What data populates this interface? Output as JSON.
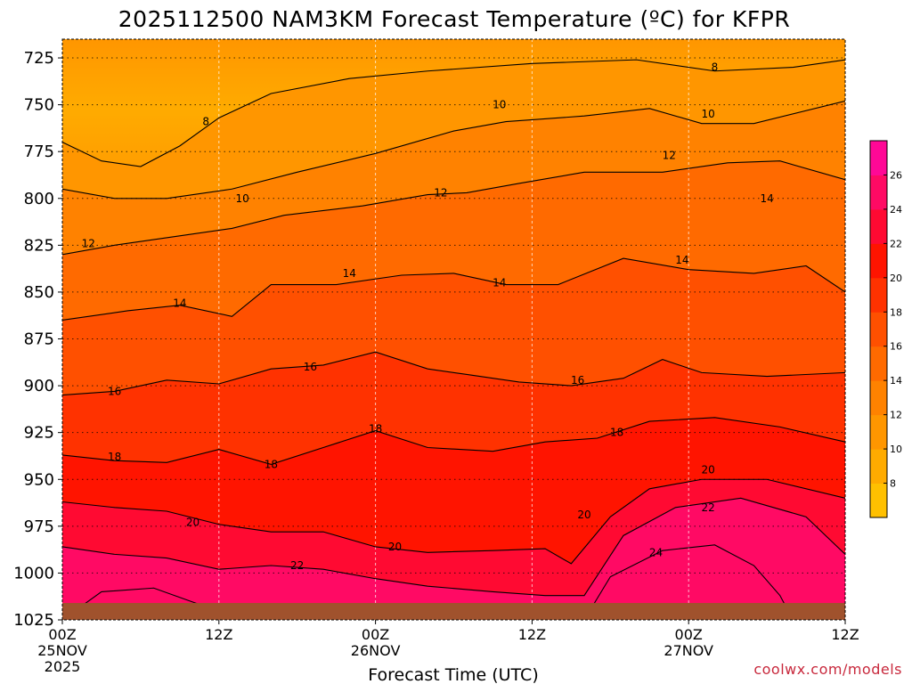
{
  "chart_data": {
    "type": "heatmap",
    "title": "2025112500 NAM3KM Forecast Temperature (ºC) for KFPR",
    "xlabel": "Forecast Time (UTC)",
    "ylabel": "",
    "credit": "coolwx.com/models",
    "y_axis": {
      "scale": "pressure (hPa), inverted",
      "ylim": [
        1025,
        715
      ],
      "ticks": [
        "725",
        "750",
        "775",
        "800",
        "825",
        "850",
        "875",
        "900",
        "925",
        "950",
        "975",
        "1000",
        "1025"
      ]
    },
    "x_axis": {
      "range_hours": [
        0,
        60
      ],
      "ticks": [
        {
          "hour": 0,
          "label": "00Z",
          "date": "25NOV",
          "year": "2025"
        },
        {
          "hour": 12,
          "label": "12Z",
          "date": "",
          "year": ""
        },
        {
          "hour": 24,
          "label": "00Z",
          "date": "26NOV",
          "year": ""
        },
        {
          "hour": 36,
          "label": "12Z",
          "date": "",
          "year": ""
        },
        {
          "hour": 48,
          "label": "00Z",
          "date": "27NOV",
          "year": ""
        },
        {
          "hour": 60,
          "label": "12Z",
          "date": "",
          "year": ""
        }
      ]
    },
    "colorbar": {
      "levels": [
        6,
        8,
        10,
        12,
        14,
        16,
        18,
        20,
        22,
        24,
        26,
        28
      ],
      "labels": [
        "8",
        "10",
        "12",
        "14",
        "16",
        "18",
        "20",
        "22",
        "24",
        "26"
      ],
      "colors": [
        "#ffc000",
        "#ffab00",
        "#ff9600",
        "#ff8200",
        "#ff6a00",
        "#ff5000",
        "#ff3200",
        "#ff1400",
        "#ff0a32",
        "#ff0a64",
        "#ff0896"
      ]
    },
    "contours": [
      {
        "value": 8,
        "points": [
          [
            0,
            770
          ],
          [
            3,
            780
          ],
          [
            6,
            783
          ],
          [
            9,
            772
          ],
          [
            12,
            757
          ],
          [
            16,
            744
          ],
          [
            22,
            736
          ],
          [
            28,
            732
          ],
          [
            36,
            728
          ],
          [
            44,
            726
          ],
          [
            50,
            732
          ],
          [
            56,
            730
          ],
          [
            60,
            726
          ]
        ]
      },
      {
        "value": 10,
        "points": [
          [
            0,
            795
          ],
          [
            4,
            800
          ],
          [
            8,
            800
          ],
          [
            13,
            795
          ],
          [
            18,
            786
          ],
          [
            24,
            776
          ],
          [
            30,
            764
          ],
          [
            34,
            759
          ],
          [
            40,
            756
          ],
          [
            45,
            752
          ],
          [
            49,
            760
          ],
          [
            53,
            760
          ],
          [
            60,
            748
          ]
        ]
      },
      {
        "value": 12,
        "points": [
          [
            0,
            830
          ],
          [
            4,
            825
          ],
          [
            9,
            820
          ],
          [
            13,
            816
          ],
          [
            17,
            809
          ],
          [
            23,
            804
          ],
          [
            28,
            798
          ],
          [
            31,
            797
          ],
          [
            35,
            792
          ],
          [
            40,
            786
          ],
          [
            46,
            786
          ],
          [
            51,
            781
          ],
          [
            55,
            780
          ],
          [
            60,
            790
          ]
        ]
      },
      {
        "value": 14,
        "points": [
          [
            0,
            865
          ],
          [
            5,
            860
          ],
          [
            9,
            857
          ],
          [
            13,
            863
          ],
          [
            16,
            846
          ],
          [
            21,
            846
          ],
          [
            26,
            841
          ],
          [
            30,
            840
          ],
          [
            34,
            846
          ],
          [
            38,
            846
          ],
          [
            43,
            832
          ],
          [
            48,
            838
          ],
          [
            53,
            840
          ],
          [
            57,
            836
          ],
          [
            60,
            850
          ]
        ]
      },
      {
        "value": 16,
        "points": [
          [
            0,
            905
          ],
          [
            4,
            903
          ],
          [
            8,
            897
          ],
          [
            12,
            899
          ],
          [
            16,
            891
          ],
          [
            20,
            889
          ],
          [
            24,
            882
          ],
          [
            28,
            891
          ],
          [
            31,
            894
          ],
          [
            35,
            898
          ],
          [
            39,
            900
          ],
          [
            43,
            896
          ],
          [
            46,
            886
          ],
          [
            49,
            893
          ],
          [
            54,
            895
          ],
          [
            60,
            893
          ]
        ]
      },
      {
        "value": 18,
        "points": [
          [
            0,
            937
          ],
          [
            4,
            940
          ],
          [
            8,
            941
          ],
          [
            12,
            934
          ],
          [
            16,
            942
          ],
          [
            20,
            933
          ],
          [
            24,
            924
          ],
          [
            28,
            933
          ],
          [
            33,
            935
          ],
          [
            37,
            930
          ],
          [
            41,
            928
          ],
          [
            45,
            919
          ],
          [
            50,
            917
          ],
          [
            55,
            922
          ],
          [
            60,
            930
          ]
        ]
      },
      {
        "value": 20,
        "points": [
          [
            0,
            962
          ],
          [
            4,
            965
          ],
          [
            8,
            967
          ],
          [
            12,
            974
          ],
          [
            16,
            978
          ],
          [
            20,
            978
          ],
          [
            24,
            986
          ],
          [
            28,
            989
          ],
          [
            33,
            988
          ],
          [
            37,
            987
          ],
          [
            39,
            995
          ],
          [
            42,
            970
          ],
          [
            45,
            955
          ],
          [
            49,
            950
          ],
          [
            54,
            950
          ],
          [
            60,
            960
          ]
        ]
      },
      {
        "value": 22,
        "points": [
          [
            0,
            986
          ],
          [
            4,
            990
          ],
          [
            8,
            992
          ],
          [
            12,
            998
          ],
          [
            16,
            996
          ],
          [
            20,
            998
          ],
          [
            24,
            1003
          ],
          [
            28,
            1007
          ],
          [
            33,
            1010
          ],
          [
            37,
            1012
          ],
          [
            40,
            1012
          ],
          [
            43,
            980
          ],
          [
            47,
            965
          ],
          [
            52,
            960
          ],
          [
            57,
            970
          ],
          [
            60,
            990
          ]
        ]
      },
      {
        "value": 24,
        "points": [
          [
            0,
            1025
          ],
          [
            3,
            1010
          ],
          [
            7,
            1008
          ],
          [
            11,
            1018
          ],
          [
            14,
            1025
          ]
        ]
      },
      {
        "value": 24,
        "points": [
          [
            40,
            1025
          ],
          [
            42,
            1002
          ],
          [
            46,
            988
          ],
          [
            50,
            985
          ],
          [
            53,
            996
          ],
          [
            55,
            1012
          ],
          [
            56,
            1025
          ]
        ]
      }
    ],
    "contour_labels": [
      {
        "text": "8",
        "hour": 11,
        "p": 759
      },
      {
        "text": "8",
        "hour": 50,
        "p": 730
      },
      {
        "text": "10",
        "hour": 13.8,
        "p": 800
      },
      {
        "text": "10",
        "hour": 33.5,
        "p": 750
      },
      {
        "text": "10",
        "hour": 49.5,
        "p": 755
      },
      {
        "text": "12",
        "hour": 2,
        "p": 824
      },
      {
        "text": "12",
        "hour": 29,
        "p": 797
      },
      {
        "text": "12",
        "hour": 46.5,
        "p": 777
      },
      {
        "text": "14",
        "hour": 9,
        "p": 856
      },
      {
        "text": "14",
        "hour": 22,
        "p": 840
      },
      {
        "text": "14",
        "hour": 33.5,
        "p": 845
      },
      {
        "text": "14",
        "hour": 47.5,
        "p": 833
      },
      {
        "text": "14",
        "hour": 54,
        "p": 800
      },
      {
        "text": "16",
        "hour": 4,
        "p": 903
      },
      {
        "text": "16",
        "hour": 19,
        "p": 890
      },
      {
        "text": "16",
        "hour": 39.5,
        "p": 897
      },
      {
        "text": "18",
        "hour": 4,
        "p": 938
      },
      {
        "text": "18",
        "hour": 16,
        "p": 942
      },
      {
        "text": "18",
        "hour": 24,
        "p": 923
      },
      {
        "text": "18",
        "hour": 42.5,
        "p": 925
      },
      {
        "text": "20",
        "hour": 10,
        "p": 973
      },
      {
        "text": "20",
        "hour": 25.5,
        "p": 986
      },
      {
        "text": "20",
        "hour": 40,
        "p": 969
      },
      {
        "text": "20",
        "hour": 49.5,
        "p": 945
      },
      {
        "text": "22",
        "hour": 18,
        "p": 996
      },
      {
        "text": "22",
        "hour": 49.5,
        "p": 965
      },
      {
        "text": "24",
        "hour": 45.5,
        "p": 989
      }
    ],
    "ground_top_p": 1016
  }
}
